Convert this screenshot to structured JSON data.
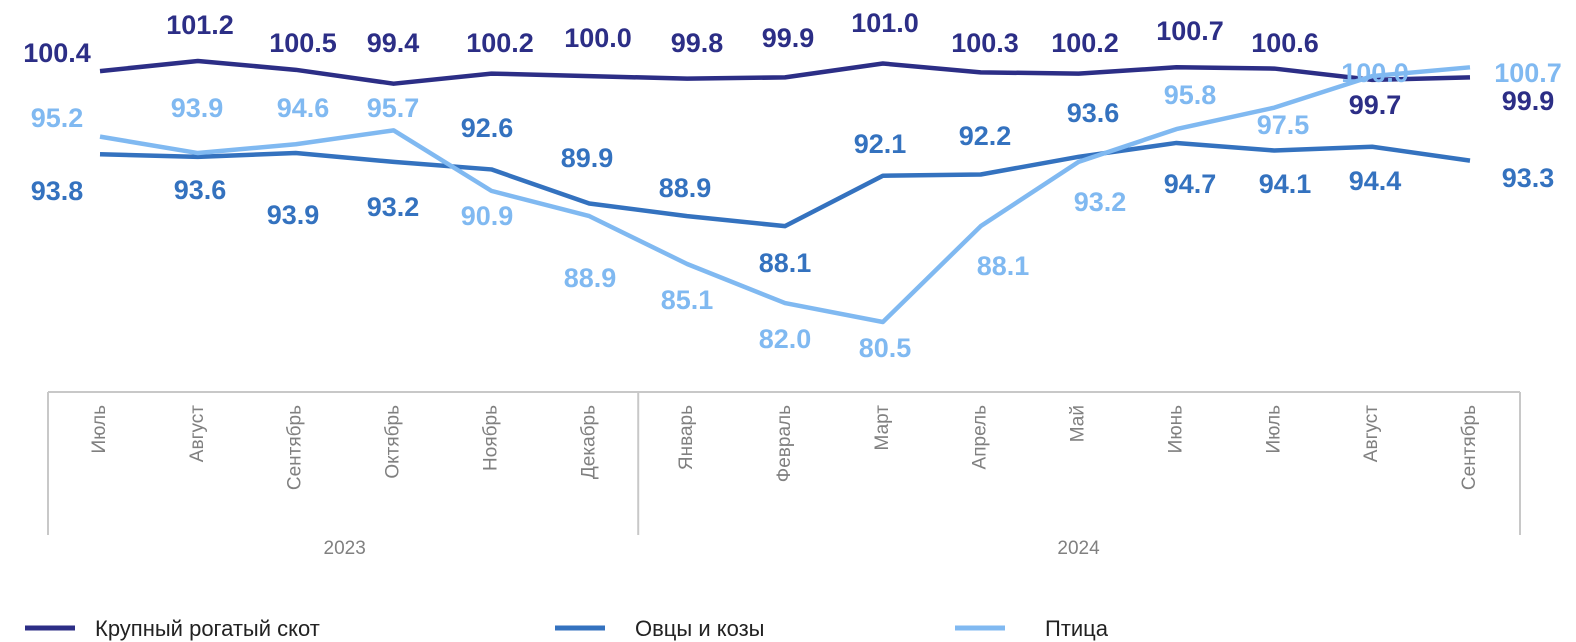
{
  "chart_data": {
    "type": "line",
    "categories": [
      "Июль",
      "Август",
      "Сентябрь",
      "Октябрь",
      "Ноябрь",
      "Декабрь",
      "Январь",
      "Февраль",
      "Март",
      "Апрель",
      "Май",
      "Июнь",
      "Июль",
      "Август",
      "Сентябрь"
    ],
    "category_groups": [
      {
        "label": "2023",
        "size": 6
      },
      {
        "label": "2024",
        "size": 9
      }
    ],
    "series": [
      {
        "name": "Крупный рогатый скот",
        "color": "#2c2e86",
        "values": [
          100.4,
          101.2,
          100.5,
          99.4,
          100.2,
          100.0,
          99.8,
          99.9,
          101.0,
          100.3,
          100.2,
          100.7,
          100.6,
          99.7,
          99.9
        ],
        "value_labels": [
          "100.4",
          "101.2",
          "100.5",
          "99.4",
          "100.2",
          "100.0",
          "99.8",
          "99.9",
          "101.0",
          "100.3",
          "100.2",
          "100.7",
          "100.6",
          "99.7",
          "99.9"
        ]
      },
      {
        "name": "Овцы  и козы",
        "color": "#3472bf",
        "values": [
          93.8,
          93.6,
          93.9,
          93.2,
          92.6,
          89.9,
          88.9,
          88.1,
          92.1,
          92.2,
          93.6,
          94.7,
          94.1,
          94.4,
          93.3
        ],
        "value_labels": [
          "93.8",
          "93.6",
          "93.9",
          "93.2",
          "92.6",
          "89.9",
          "88.9",
          "88.1",
          "92.1",
          "92.2",
          "93.6",
          "94.7",
          "94.1",
          "94.4",
          "93.3"
        ]
      },
      {
        "name": "Птица",
        "color": "#80b9f1",
        "values": [
          95.2,
          93.9,
          94.6,
          95.7,
          90.9,
          88.9,
          85.1,
          82.0,
          80.5,
          88.1,
          93.2,
          95.8,
          97.5,
          100.0,
          100.7
        ],
        "value_labels": [
          "95.2",
          "93.9",
          "94.6",
          "95.7",
          "90.9",
          "88.9",
          "85.1",
          "82.0",
          "80.5",
          "88.1",
          "93.2",
          "95.8",
          "97.5",
          "100.0",
          "100.7"
        ]
      }
    ]
  }
}
